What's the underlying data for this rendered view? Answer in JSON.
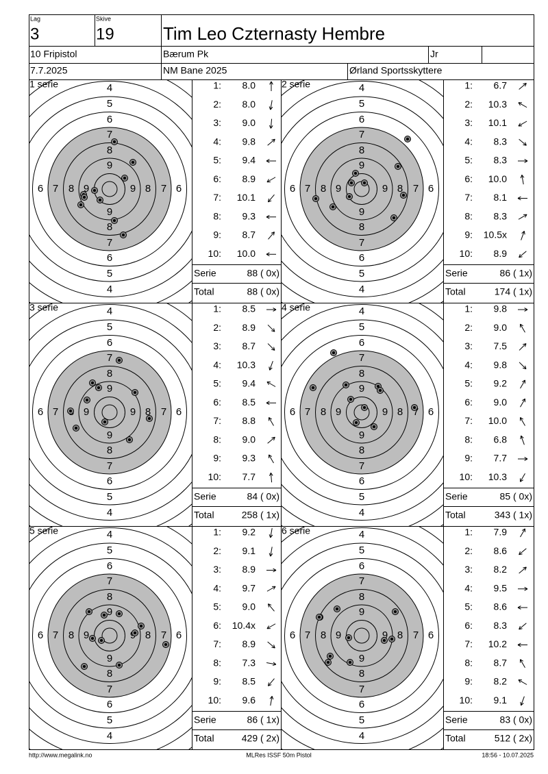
{
  "header": {
    "lag_label": "Lag",
    "lag": "3",
    "skive_label": "Skive",
    "skive": "19",
    "name": "Tim Leo Czternasty Hembre",
    "class": "10 Fripistol",
    "club": "Bærum Pk",
    "age_class": "Jr",
    "date": "7.7.2025",
    "event": "NM Bane 2025",
    "organizer": "Ørland Sportsskyttere"
  },
  "ring_labels": [
    "4",
    "5",
    "6",
    "7",
    "8",
    "9"
  ],
  "shot_numbers": [
    "1:",
    "2:",
    "3:",
    "4:",
    "5:",
    "6:",
    "7:",
    "8:",
    "9:",
    "10:"
  ],
  "serie_label": "Serie",
  "total_label": "Total",
  "series": [
    {
      "label": "1 serie",
      "shots": [
        "8.0",
        "8.0",
        "9.0",
        "9.8",
        "9.4",
        "8.9",
        "10.1",
        "9.3",
        "8.7",
        "10.0"
      ],
      "serie": "88 ( 0x)",
      "total": "88 ( 0x)"
    },
    {
      "label": "2 serie",
      "shots": [
        "6.7",
        "10.3",
        "10.1",
        "8.3",
        "8.3",
        "10.0",
        "8.1",
        "8.3",
        "10.5x",
        "8.9"
      ],
      "serie": "86 ( 1x)",
      "total": "174 ( 1x)"
    },
    {
      "label": "3 serie",
      "shots": [
        "8.5",
        "8.9",
        "8.7",
        "10.3",
        "9.4",
        "8.5",
        "8.8",
        "9.0",
        "9.3",
        "7.7"
      ],
      "serie": "84 ( 0x)",
      "total": "258 ( 1x)"
    },
    {
      "label": "4 serie",
      "shots": [
        "9.8",
        "9.0",
        "7.5",
        "9.8",
        "9.2",
        "9.0",
        "10.0",
        "6.8",
        "7.7",
        "10.3"
      ],
      "serie": "85 ( 0x)",
      "total": "343 ( 1x)"
    },
    {
      "label": "5 serie",
      "shots": [
        "9.2",
        "9.1",
        "8.9",
        "9.7",
        "9.0",
        "10.4x",
        "8.9",
        "7.3",
        "8.5",
        "9.6"
      ],
      "serie": "86 ( 1x)",
      "total": "429 ( 2x)"
    },
    {
      "label": "6 serie",
      "shots": [
        "7.9",
        "8.6",
        "8.2",
        "9.5",
        "8.6",
        "8.3",
        "10.2",
        "8.7",
        "8.2",
        "9.1"
      ],
      "serie": "83 ( 0x)",
      "total": "512 ( 2x)"
    }
  ],
  "footer": {
    "url": "http://www.megalink.no",
    "program": "MLRes ISSF 50m Pistol",
    "timestamp": "18:56 - 10.07.2025"
  }
}
